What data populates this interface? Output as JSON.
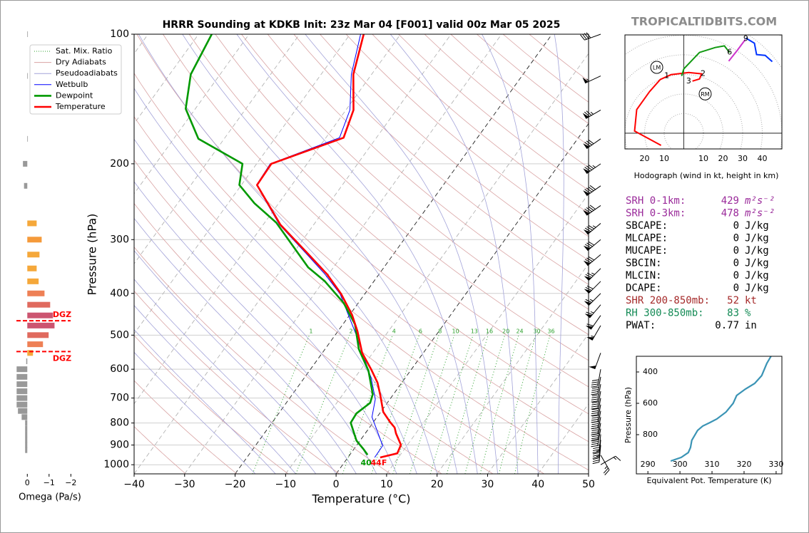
{
  "watermark": "TROPICALTIDBITS.COM",
  "indices": [
    {
      "label": "SRH 0-1km:",
      "value": 429,
      "unit": "m²s⁻²",
      "color": "#9a2a9a"
    },
    {
      "label": "SRH 0-3km:",
      "value": 478,
      "unit": "m²s⁻²",
      "color": "#9a2a9a"
    },
    {
      "label": "SBCAPE:",
      "value": 0,
      "unit": "J/kg",
      "color": "#000000"
    },
    {
      "label": "MLCAPE:",
      "value": 0,
      "unit": "J/kg",
      "color": "#000000"
    },
    {
      "label": "MUCAPE:",
      "value": 0,
      "unit": "J/kg",
      "color": "#000000"
    },
    {
      "label": "SBCIN:",
      "value": 0,
      "unit": "J/kg",
      "color": "#000000"
    },
    {
      "label": "MLCIN:",
      "value": 0,
      "unit": "J/kg",
      "color": "#000000"
    },
    {
      "label": "DCAPE:",
      "value": 0,
      "unit": "J/kg",
      "color": "#000000"
    },
    {
      "label": "SHR 200-850mb:",
      "value": 52,
      "unit": "kt",
      "color": "#a52a2a"
    },
    {
      "label": "RH 300-850mb:",
      "value": 83,
      "unit": "%",
      "color": "#138a55"
    },
    {
      "label": "PWAT:",
      "value": 0.77,
      "unit": "in",
      "color": "#000000"
    }
  ],
  "chart_data": [
    {
      "type": "skewt",
      "title": "HRRR Sounding at KDKB Init: 23z Mar 04 [F001] valid 00z Mar 05 2025",
      "xlabel": "Temperature (°C)",
      "ylabel": "Pressure (hPa)",
      "xlim": [
        -40,
        50
      ],
      "ylim": [
        1050,
        100
      ],
      "log_y": true,
      "xticks": [
        {
          "value": -40,
          "label": "−40"
        },
        {
          "value": -30,
          "label": "−30"
        },
        {
          "value": -20,
          "label": "−20"
        },
        {
          "value": -10,
          "label": "−10"
        },
        0,
        10,
        20,
        30,
        40,
        50
      ],
      "yticks": [
        100,
        200,
        300,
        400,
        500,
        600,
        700,
        800,
        900,
        1000
      ],
      "grid": true,
      "legend": "upper left",
      "reference_lines": [
        {
          "name": "Sat. Mix. Ratio",
          "color": "#2ca02c",
          "values": [
            1,
            2,
            4,
            6,
            8,
            10,
            13,
            16,
            20,
            24,
            30,
            36
          ]
        },
        {
          "name": "Dry Adiabats",
          "color": "#d9a3a3"
        },
        {
          "name": "Pseudoadiabats",
          "color": "#a3a3d9"
        }
      ],
      "series": [
        {
          "name": "Wetbulb",
          "color": "#0000ff",
          "pressure": [
            962,
            903,
            820,
            775,
            704,
            628,
            500,
            401,
            361,
            322,
            277,
            224,
            200,
            174,
            150,
            124,
            100
          ],
          "values": [
            5.3,
            5.2,
            1.3,
            -1.0,
            -2.9,
            -6.8,
            -15.8,
            -24.9,
            -30.7,
            -37.6,
            -46.8,
            -57.0,
            -57.3,
            -47.3,
            -49.2,
            -54.0,
            -57.9
          ]
        },
        {
          "name": "Dewpoint",
          "color": "#009900",
          "pressure": [
            948,
            920,
            879,
            799,
            760,
            718,
            686,
            605,
            539,
            472,
            421,
            375,
            348,
            274,
            247,
            224,
            200,
            175,
            149,
            124,
            100
          ],
          "values": [
            3.5,
            1.9,
            -0.7,
            -4.4,
            -4.6,
            -3.4,
            -4.1,
            -8.3,
            -13.3,
            -17.6,
            -22.9,
            -29.7,
            -35.0,
            -47.7,
            -54.8,
            -60.4,
            -62.8,
            -75.1,
            -81.9,
            -85.8,
            -87.4
          ]
        },
        {
          "name": "Temperature",
          "color": "#ff0000",
          "pressure": [
            962,
            941,
            899,
            846,
            820,
            796,
            754,
            691,
            645,
            600,
            550,
            490,
            449,
            401,
            361,
            322,
            277,
            224,
            200,
            174,
            150,
            124,
            100
          ],
          "values": [
            6.4,
            9.2,
            8.7,
            6.1,
            5.0,
            3.3,
            0.5,
            -2.4,
            -4.8,
            -8.0,
            -12.1,
            -16.1,
            -19.5,
            -24.7,
            -30.3,
            -37.3,
            -46.6,
            -56.9,
            -57.1,
            -46.5,
            -48.5,
            -53.6,
            -57.3
          ]
        }
      ],
      "surface_labels": [
        {
          "text": "40",
          "color": "#009900"
        },
        {
          "text": "44F",
          "color": "#ff0000"
        }
      ],
      "wind": {
        "pressure": [
          100,
          125,
          150,
          175,
          200,
          225,
          250,
          275,
          300,
          325,
          350,
          375,
          400,
          425,
          450,
          475,
          550,
          600,
          625,
          650,
          675,
          700,
          725,
          750,
          775,
          800,
          825,
          850,
          875,
          900,
          950,
          1000
        ],
        "speed": [
          40,
          55,
          75,
          80,
          85,
          90,
          90,
          85,
          80,
          80,
          75,
          70,
          65,
          65,
          60,
          55,
          50,
          40,
          40,
          40,
          40,
          40,
          40,
          40,
          40,
          40,
          40,
          35,
          35,
          35,
          25,
          15
        ],
        "direction": [
          250,
          245,
          240,
          235,
          235,
          235,
          235,
          230,
          230,
          230,
          225,
          225,
          225,
          220,
          215,
          210,
          200,
          190,
          190,
          190,
          190,
          190,
          190,
          190,
          190,
          190,
          190,
          185,
          185,
          185,
          150,
          60
        ]
      }
    },
    {
      "type": "hbar",
      "xlabel": "Omega (Pa/s)",
      "xlim": [
        0.5,
        -2.35
      ],
      "ylim": [
        1050,
        100
      ],
      "log_y": true,
      "xticks": [
        0,
        {
          "value": -1,
          "label": "−1"
        },
        {
          "value": -2,
          "label": "−2"
        }
      ],
      "pressure": [
        100,
        125,
        175,
        200,
        225,
        275,
        300,
        325,
        350,
        375,
        400,
        425,
        450,
        475,
        500,
        525,
        550,
        575,
        600,
        625,
        650,
        675,
        700,
        725,
        750,
        775,
        800,
        825,
        850,
        875,
        900,
        925
      ],
      "values": [
        -0.02,
        -0.02,
        -0.02,
        0.2,
        0.15,
        -0.43,
        -0.66,
        -0.56,
        -0.43,
        -0.52,
        -0.79,
        -1.05,
        -1.18,
        -1.25,
        -0.98,
        -0.72,
        -0.26,
        0.05,
        0.49,
        0.49,
        0.49,
        0.49,
        0.49,
        0.49,
        0.43,
        0.26,
        0.1,
        0.1,
        0.1,
        0.1,
        0.1,
        0.1
      ],
      "colors": [
        "#999999",
        "#999999",
        "#999999",
        "#999999",
        "#999999",
        "#f5a83a",
        "#f59a3a",
        "#f5a83a",
        "#f5a83a",
        "#f5a83a",
        "#ee8055",
        "#e06a5e",
        "#cc5570",
        "#cc5570",
        "#e06a5e",
        "#ee8055",
        "#f5a83a",
        "#999999",
        "#999999",
        "#999999",
        "#999999",
        "#999999",
        "#999999",
        "#999999",
        "#999999",
        "#999999",
        "#999999",
        "#999999",
        "#999999",
        "#999999",
        "#999999",
        "#999999"
      ],
      "dgz": {
        "labels": [
          "DGZ",
          "DGZ"
        ],
        "pressure": [
          463,
          546
        ],
        "color": "#ff0000"
      }
    },
    {
      "type": "hodograph",
      "xlabel": "Hodograph (wind in kt, height in km)",
      "xlim": [
        -30,
        50
      ],
      "ylim": [
        -8,
        50
      ],
      "xticks": [
        {
          "value": -20,
          "label": "20"
        },
        {
          "value": -10,
          "label": "10"
        },
        10,
        20,
        30,
        40
      ],
      "series": [
        {
          "color": "#ff0000",
          "x": [
            -11.6,
            -25.1,
            -24.0,
            -17.5,
            -12.0,
            -6.5,
            2.5,
            9.1,
            8.0,
            4.4
          ],
          "values": [
            -6.2,
            1.1,
            12.0,
            21.1,
            27.3,
            29.8,
            30.9,
            30.2,
            27.6,
            26.5
          ]
        },
        {
          "color": "#119911",
          "x": [
            -1.1,
            0,
            8.0,
            16.0,
            20.7,
            23.3
          ],
          "values": [
            29.1,
            32.7,
            41.1,
            43.6,
            44.4,
            41.1
          ]
        },
        {
          "color": "#cc33cc",
          "x": [
            22.9,
            27.3,
            31.3
          ],
          "values": [
            36.7,
            42.2,
            47.6
          ]
        },
        {
          "color": "#0033ff",
          "x": [
            31.6,
            36.0,
            37.1,
            41.5,
            45.1
          ],
          "values": [
            48.4,
            45.8,
            40.0,
            39.6,
            36.4
          ]
        }
      ],
      "height_labels": {
        "labels": [
          1,
          2,
          3,
          6,
          9
        ],
        "x": [
          -8.7,
          9.8,
          2.5,
          23.3,
          31.6
        ],
        "values": [
          29.1,
          30.2,
          26.5,
          41.1,
          48.0
        ]
      },
      "storm_motion": [
        {
          "label": "LM",
          "x": -13.8,
          "value": 33.5
        },
        {
          "label": "RM",
          "x": 10.9,
          "value": 20.0
        }
      ]
    },
    {
      "type": "line",
      "xlabel": "Equivalent Pot. Temperature (K)",
      "ylabel": "Pressure (hPa)",
      "xlim": [
        286.4,
        331.8
      ],
      "ylim": [
        1050,
        300
      ],
      "xticks": [
        290,
        300,
        310,
        320,
        330
      ],
      "yticks": [
        400,
        600,
        800
      ],
      "color": "#3b94b5",
      "x": [
        297.1,
        300.4,
        302.6,
        303.3,
        303.7,
        305.5,
        307.1,
        309.3,
        311.5,
        314.4,
        316.6,
        317.7,
        320.4,
        323.3,
        325.5,
        327.1,
        328.4
      ],
      "values": [
        968,
        945,
        914,
        882,
        836,
        773,
        745,
        723,
        700,
        655,
        600,
        550,
        509,
        473,
        423,
        345,
        300
      ]
    }
  ]
}
